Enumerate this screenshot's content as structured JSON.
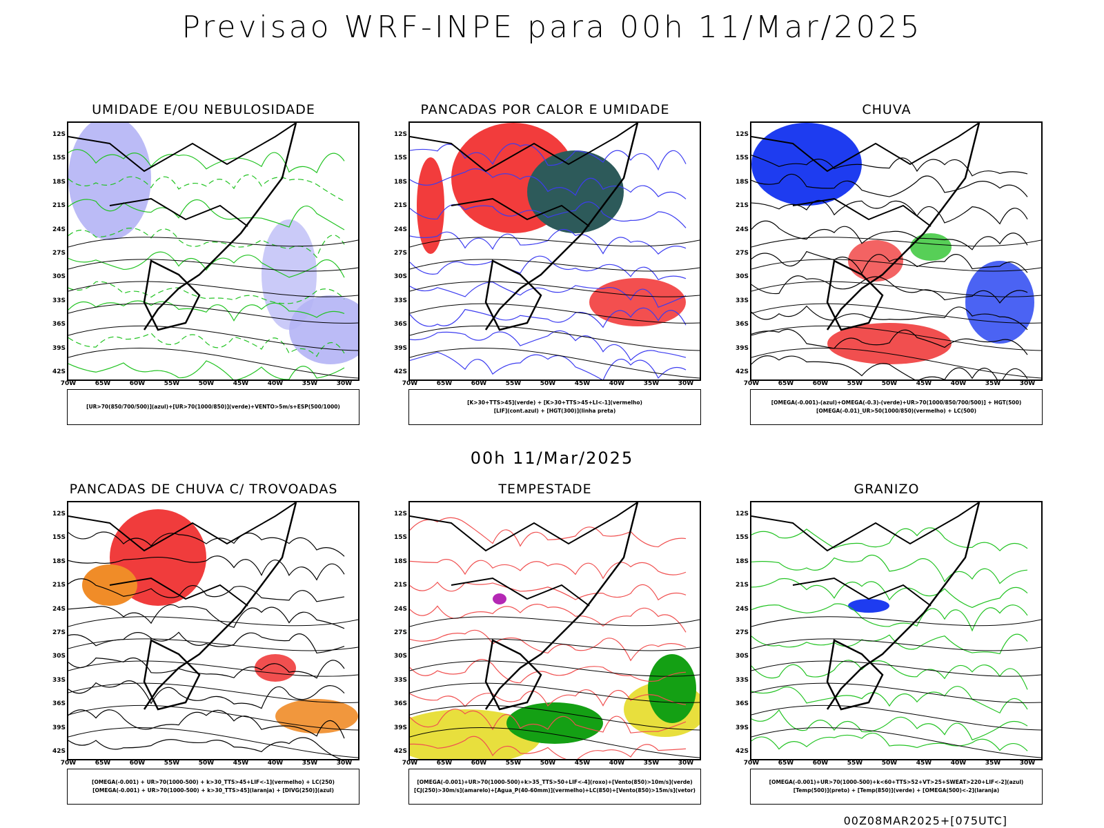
{
  "page": {
    "title": "Previsao WRF-INPE  para 00h 11/Mar/2025",
    "subtitle": "00h 11/Mar/2025",
    "footer": "00Z08MAR2025+[075UTC]"
  },
  "axes": {
    "lat_labels": [
      "12S",
      "15S",
      "18S",
      "21S",
      "24S",
      "27S",
      "30S",
      "33S",
      "36S",
      "39S",
      "42S"
    ],
    "lon_labels": [
      "70W",
      "65W",
      "60W",
      "55W",
      "50W",
      "45W",
      "40W",
      "35W",
      "30W"
    ]
  },
  "panels": [
    {
      "title": "UMIDADE E/OU NEBULOSIDADE",
      "legend_line1": "[UR>70(850/700/500)](azul)+[UR>70(1000/850)](verde)+VENTO>5m/s+ESP(500/1000)",
      "legend_line2": "",
      "colors": {
        "fill": "#b4b4f5",
        "contour": "#22c322",
        "dash": "#f04040",
        "line": "#000000"
      }
    },
    {
      "title": "PANCADAS POR CALOR E UMIDADE",
      "legend_line1": "[K>30+TTS>45](verde) + [K>30+TTS>45+LI<-1](vermelho)",
      "legend_line2": "[LIF](cont.azul) + [HGT(300)](linha preta)",
      "colors": {
        "fill": "#f23c3c",
        "fill2": "#2d5a5a",
        "contour": "#3c3cf0",
        "line": "#000000"
      }
    },
    {
      "title": "CHUVA",
      "legend_line1": "[OMEGA(-0.001)-(azul)+OMEGA(-0.3)-(verde)+UR>70(1000/850/700/500)] + HGT(500)",
      "legend_line2": "[OMEGA(-0.01)_UR>50(1000/850)(vermelho) + LC(500)",
      "colors": {
        "fill": "#1e3cf0",
        "fill2": "#f03c3c",
        "fill3": "#2dc32d",
        "line": "#000000"
      }
    },
    {
      "title": "PANCADAS DE CHUVA C/ TROVOADAS",
      "legend_line1": "[OMEGA(-0.001) + UR>70(1000-500) + k>30_TTS>45+LIF<-1](vermelho) + LC(250)",
      "legend_line2": "[OMEGA(-0.001) + UR>70(1000-500) + k>30_TTS>45](laranja) + [DIVG(250)](azul)",
      "colors": {
        "fill": "#f03c3c",
        "fill2": "#f08c28",
        "fill3": "#1e3cf0",
        "line": "#000000"
      }
    },
    {
      "title": "TEMPESTADE",
      "legend_line1": "[OMEGA(-0.001)+UR>70(1000-500)+k>35_TTS>50+LIF<-4](roxo)+[Vento(850)>10m/s](verde)",
      "legend_line2": "[CJ(250)>30m/s](amarelo)+[Agua_P(40-60mm)](vermelho)+LC(850)+[Vento(850)>15m/s](vetor)",
      "colors": {
        "fill": "#e6dc28",
        "fill2": "#14a014",
        "fill3": "#b428b4",
        "contour": "#f05050",
        "line": "#000000"
      }
    },
    {
      "title": "GRANIZO",
      "legend_line1": "[OMEGA(-0.001)+UR>70(1000-500)+k<60+TTS>52+VT>25+SWEAT>220+LIF<-2](azul)",
      "legend_line2": "[Temp(500)](preto) + [Temp(850)](verde) + [OMEGA(500)<-2](laranja)",
      "colors": {
        "fill": "#1e3cf0",
        "contour": "#22c322",
        "line": "#000000"
      }
    }
  ]
}
